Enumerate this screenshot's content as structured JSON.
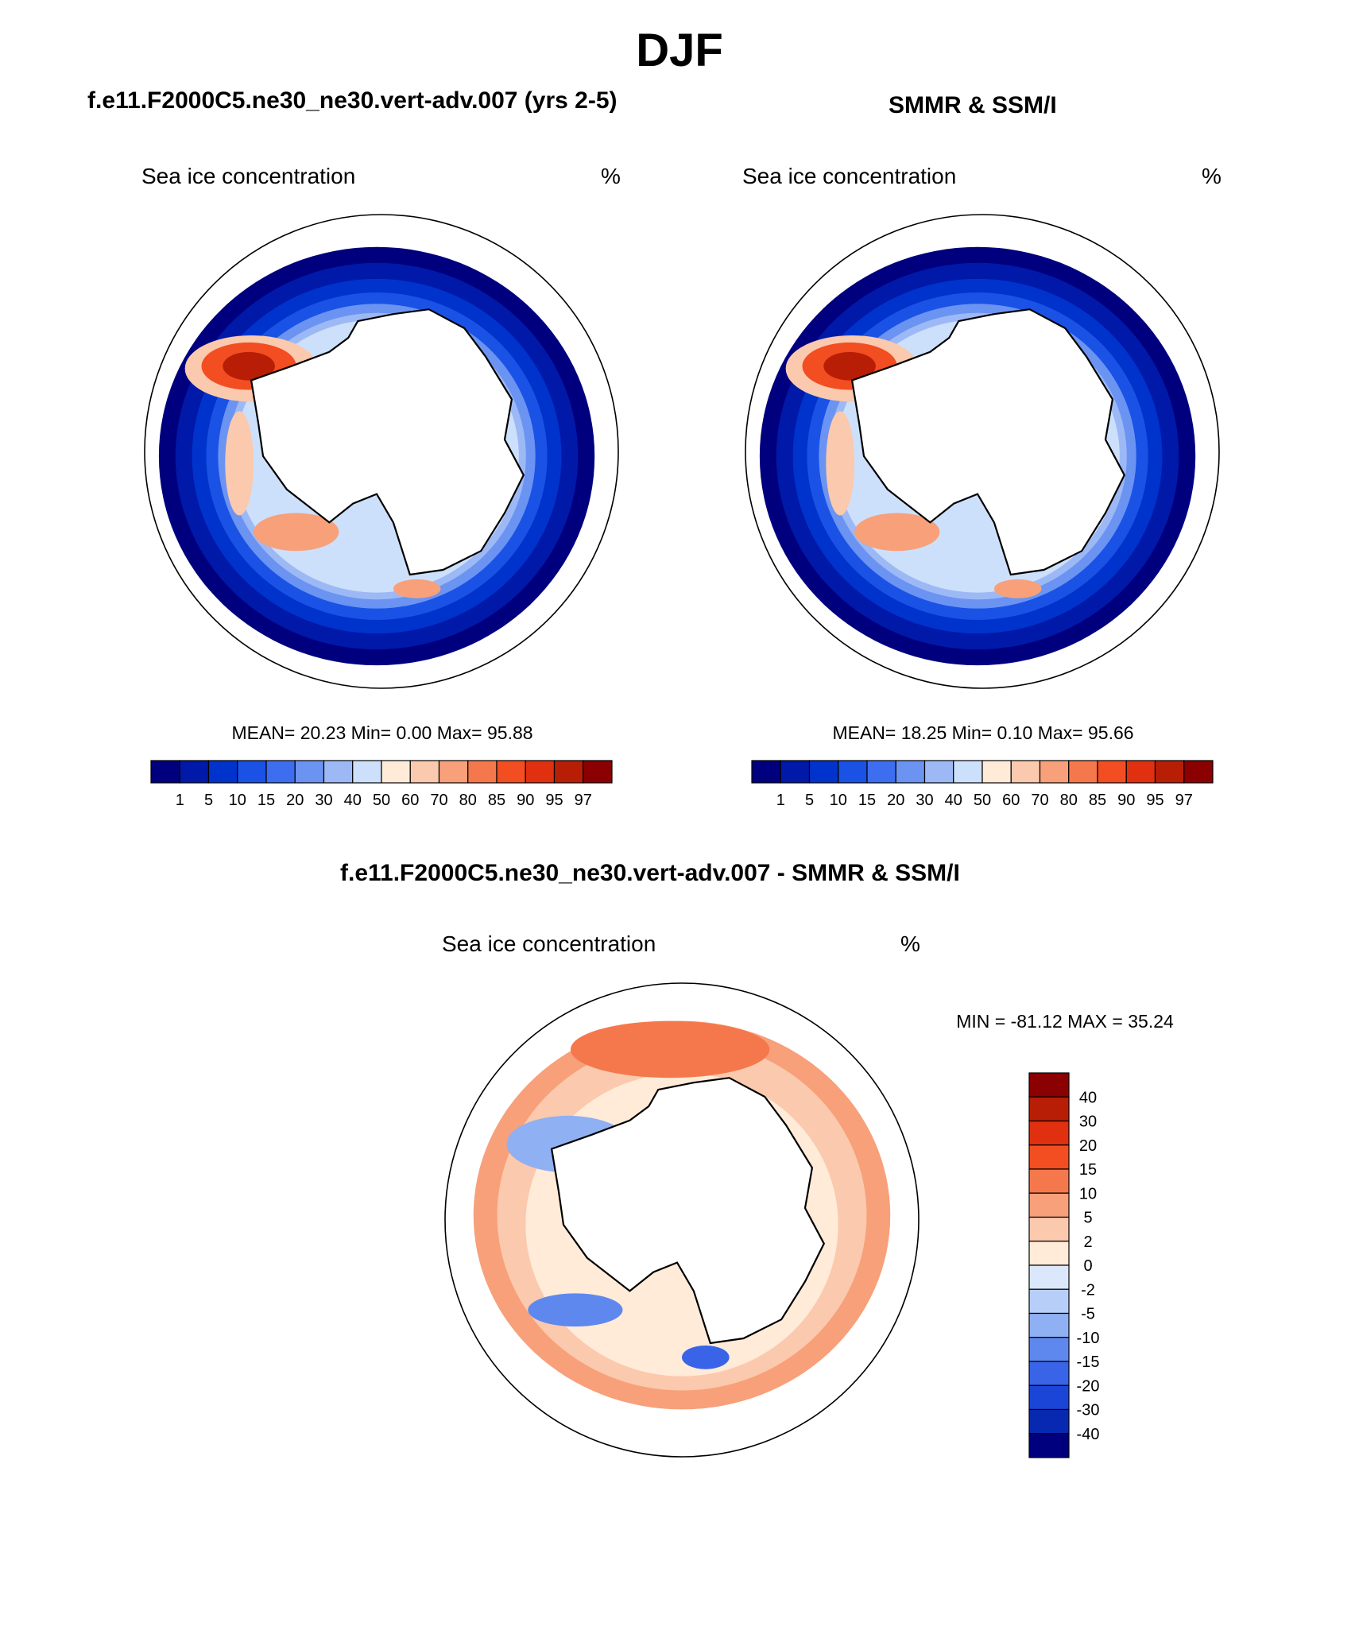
{
  "figure": {
    "title": "DJF",
    "panels": [
      {
        "id": "model",
        "title": "f.e11.F2000C5.ne30_ne30.vert-adv.007 (yrs 2-5)",
        "variable": "Sea ice concentration",
        "units": "%",
        "stats": "MEAN=  20.23  Min=   0.00  Max=  95.88"
      },
      {
        "id": "obs",
        "title": "SMMR & SSM/I",
        "variable": "Sea ice concentration",
        "units": "%",
        "stats": "MEAN=  18.25  Min=   0.10  Max=  95.66"
      },
      {
        "id": "diff",
        "title": "f.e11.F2000C5.ne30_ne30.vert-adv.007 - SMMR & SSM/I",
        "variable": "Sea ice concentration",
        "units": "%",
        "stats": "MIN = -81.12 MAX =  35.24"
      }
    ]
  },
  "chart_data": [
    {
      "type": "heatmap",
      "projection": "south polar stereographic",
      "title": "f.e11.F2000C5.ne30_ne30.vert-adv.007 (yrs 2-5)",
      "variable": "Sea ice concentration",
      "units": "%",
      "mean": 20.23,
      "min": 0.0,
      "max": 95.88,
      "colorbar": {
        "orientation": "horizontal",
        "levels": [
          1,
          5,
          10,
          15,
          20,
          30,
          40,
          50,
          60,
          70,
          80,
          85,
          90,
          95,
          97
        ],
        "colors": [
          "#00007f",
          "#0019a8",
          "#0033cc",
          "#1a52e6",
          "#3d6ef0",
          "#6b93f2",
          "#9db9f5",
          "#cde0fb",
          "#ffebd8",
          "#fbc9ad",
          "#f7a07a",
          "#f5784d",
          "#f24e22",
          "#e03010",
          "#b81e06",
          "#8b0000"
        ]
      }
    },
    {
      "type": "heatmap",
      "projection": "south polar stereographic",
      "title": "SMMR & SSM/I",
      "variable": "Sea ice concentration",
      "units": "%",
      "mean": 18.25,
      "min": 0.1,
      "max": 95.66,
      "colorbar": {
        "orientation": "horizontal",
        "levels": [
          1,
          5,
          10,
          15,
          20,
          30,
          40,
          50,
          60,
          70,
          80,
          85,
          90,
          95,
          97
        ],
        "colors": [
          "#00007f",
          "#0019a8",
          "#0033cc",
          "#1a52e6",
          "#3d6ef0",
          "#6b93f2",
          "#9db9f5",
          "#cde0fb",
          "#ffebd8",
          "#fbc9ad",
          "#f7a07a",
          "#f5784d",
          "#f24e22",
          "#e03010",
          "#b81e06",
          "#8b0000"
        ]
      }
    },
    {
      "type": "heatmap",
      "projection": "south polar stereographic",
      "title": "f.e11.F2000C5.ne30_ne30.vert-adv.007 - SMMR & SSM/I",
      "variable": "Sea ice concentration",
      "units": "%",
      "min": -81.12,
      "max": 35.24,
      "colorbar": {
        "orientation": "vertical",
        "levels": [
          40,
          30,
          20,
          15,
          10,
          5,
          2,
          0,
          -2,
          -5,
          -10,
          -15,
          -20,
          -30,
          -40
        ],
        "colors": [
          "#8b0000",
          "#b81e06",
          "#e03010",
          "#f24e22",
          "#f5784d",
          "#f7a07a",
          "#fbc9ad",
          "#ffebd8",
          "#dbe8fb",
          "#b7cff8",
          "#8fb0f3",
          "#5f88ee",
          "#3964e8",
          "#1a45d6",
          "#0728b0",
          "#00007f"
        ]
      }
    }
  ]
}
